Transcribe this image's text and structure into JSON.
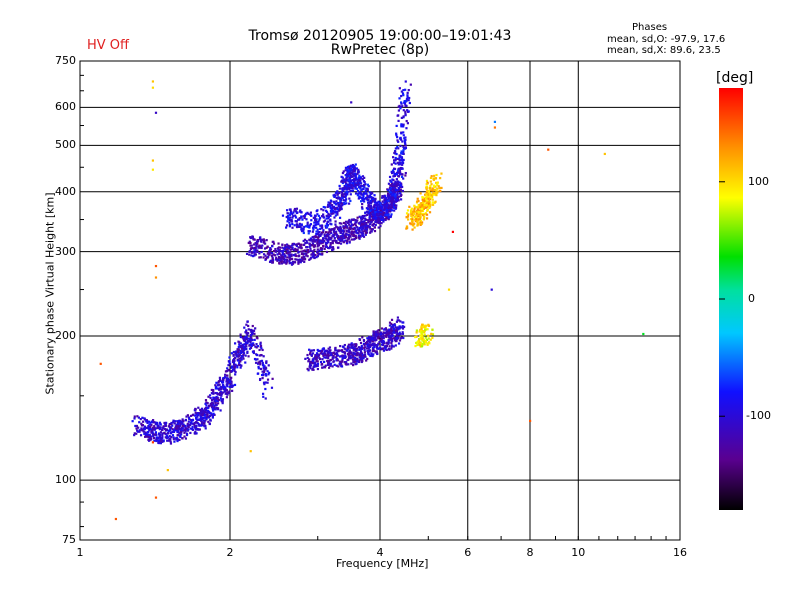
{
  "hv_status": "HV Off",
  "title_line1": "Tromsø 20120905 19:00:00–19:01:43",
  "title_line2": "RwPretec (8p)",
  "phase_info": {
    "heading": "Phases",
    "o_line": "mean, sd,O: -97.9, 17.6",
    "x_line": "mean, sd,X:  89.6, 23.5"
  },
  "colorbar": {
    "unit_label": "[deg]",
    "range": [
      -180,
      180
    ],
    "tick_labels": [
      "100",
      "0",
      "-100"
    ],
    "tick_values": [
      100,
      0,
      -100
    ]
  },
  "chart_data": {
    "type": "scatter",
    "title": "Tromsø 20120905 19:00:00–19:01:43",
    "subtitle": "RwPretec (8p)",
    "xlabel": "Frequency [MHz]",
    "ylabel": "Stationary phase Virtual Height [km]",
    "x_scale": "log",
    "y_scale": "log",
    "xlim": [
      1,
      16
    ],
    "ylim": [
      75,
      750
    ],
    "x_ticks": [
      1,
      2,
      4,
      6,
      8,
      10,
      16
    ],
    "x_tick_labels": [
      "1",
      "2",
      "4",
      "6",
      "8",
      "10",
      "16"
    ],
    "y_ticks": [
      75,
      100,
      200,
      300,
      400,
      500,
      600,
      750
    ],
    "y_tick_labels": [
      "75",
      "100",
      "200",
      "300",
      "400",
      "500",
      "600",
      "750"
    ],
    "grid": true,
    "color_by": "phase (deg)",
    "traces": [
      {
        "x": [
          1.3,
          1.4,
          1.5,
          1.6,
          1.7,
          1.8,
          1.9,
          2.0,
          2.1,
          2.2,
          2.4
        ],
        "y": [
          130,
          126,
          125,
          128,
          132,
          138,
          150,
          165,
          185,
          205,
          150
        ],
        "phase": -105
      },
      {
        "x": [
          2.2,
          2.4,
          2.6,
          2.8,
          3.0,
          3.2,
          3.4,
          3.6,
          3.8,
          4.0,
          4.2,
          4.4
        ],
        "y": [
          310,
          300,
          295,
          300,
          310,
          320,
          330,
          335,
          345,
          360,
          380,
          420
        ],
        "phase": -115
      },
      {
        "x": [
          2.6,
          2.9,
          3.2,
          3.4,
          3.5,
          3.6,
          3.8,
          4.0,
          4.2,
          4.3,
          4.4,
          4.5
        ],
        "y": [
          355,
          340,
          360,
          400,
          440,
          420,
          380,
          360,
          380,
          420,
          500,
          650
        ],
        "phase": -95
      },
      {
        "x": [
          2.9,
          3.1,
          3.4,
          3.6,
          3.8,
          4.0,
          4.2,
          4.4
        ],
        "y": [
          178,
          180,
          182,
          184,
          190,
          196,
          198,
          210
        ],
        "phase": -110
      },
      {
        "x": [
          4.6,
          4.8,
          5.0,
          5.2
        ],
        "y": [
          350,
          360,
          390,
          420
        ],
        "phase": 110
      },
      {
        "x": [
          4.8,
          5.0
        ],
        "y": [
          195,
          205
        ],
        "phase": 90
      }
    ],
    "sparse_points": [
      {
        "x": 1.4,
        "y": 680,
        "phase": 110
      },
      {
        "x": 1.4,
        "y": 660,
        "phase": 100
      },
      {
        "x": 1.42,
        "y": 585,
        "phase": -110
      },
      {
        "x": 1.4,
        "y": 465,
        "phase": 110
      },
      {
        "x": 1.4,
        "y": 445,
        "phase": 95
      },
      {
        "x": 1.42,
        "y": 280,
        "phase": 150
      },
      {
        "x": 1.42,
        "y": 265,
        "phase": 130
      },
      {
        "x": 1.4,
        "y": 120,
        "phase": 160
      },
      {
        "x": 1.42,
        "y": 92,
        "phase": 150
      },
      {
        "x": 1.5,
        "y": 105,
        "phase": 110
      },
      {
        "x": 1.1,
        "y": 175,
        "phase": 150
      },
      {
        "x": 1.18,
        "y": 83,
        "phase": 150
      },
      {
        "x": 3.5,
        "y": 615,
        "phase": -110
      },
      {
        "x": 6.8,
        "y": 560,
        "phase": -50
      },
      {
        "x": 6.8,
        "y": 545,
        "phase": 140
      },
      {
        "x": 8.7,
        "y": 490,
        "phase": 150
      },
      {
        "x": 11.3,
        "y": 480,
        "phase": 110
      },
      {
        "x": 13.5,
        "y": 202,
        "phase": 30
      },
      {
        "x": 8.0,
        "y": 133,
        "phase": 150
      },
      {
        "x": 6.7,
        "y": 250,
        "phase": -100
      },
      {
        "x": 5.6,
        "y": 330,
        "phase": 180
      },
      {
        "x": 5.5,
        "y": 250,
        "phase": 100
      },
      {
        "x": 2.2,
        "y": 115,
        "phase": 110
      }
    ]
  }
}
